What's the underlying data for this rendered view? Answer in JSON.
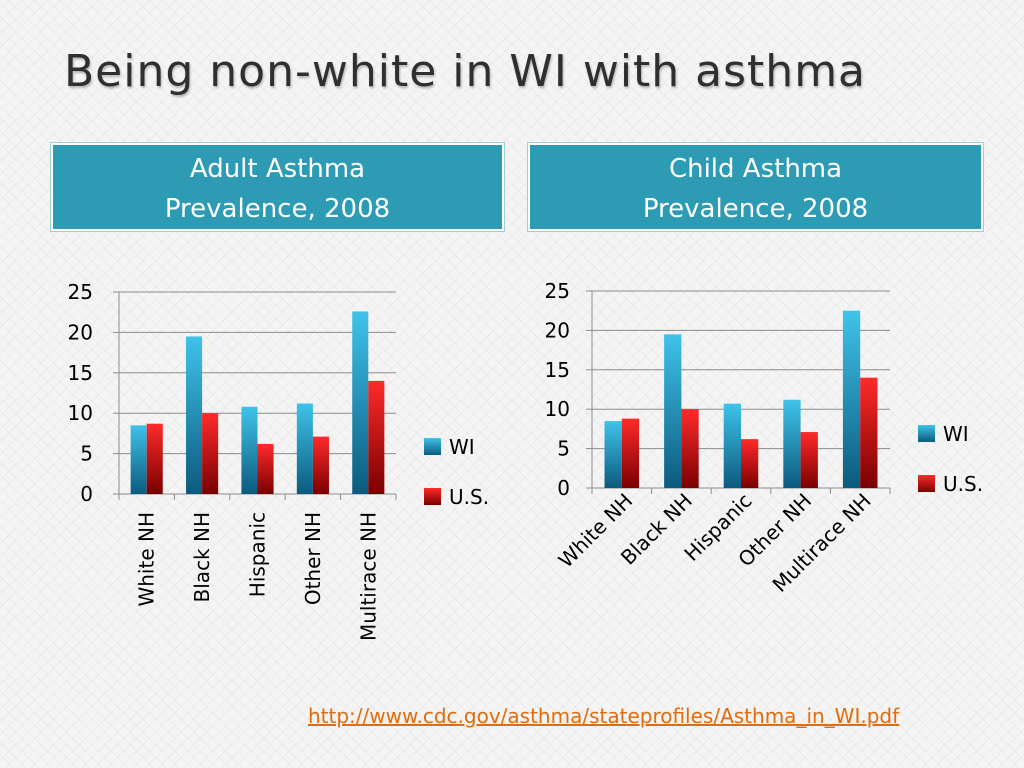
{
  "slide": {
    "title": "Being non-white in WI with asthma",
    "source_link": "http://www.cdc.gov/asthma/stateprofiles/Asthma_in_WI.pdf"
  },
  "headers": {
    "adult": {
      "line1": "Adult Asthma",
      "line2": "Prevalence, 2008"
    },
    "child": {
      "line1": "Child Asthma",
      "line2": "Prevalence, 2008"
    }
  },
  "colors": {
    "wi": "#1a95c1",
    "us": "#e02020",
    "header_bg": "#2e9bb5",
    "link": "#e36c0a"
  },
  "chart_data": [
    {
      "type": "bar",
      "categories": [
        "White NH",
        "Black NH",
        "Hispanic",
        "Other NH",
        "Multirace NH"
      ],
      "series": [
        {
          "name": "WI",
          "values": [
            8.5,
            19.5,
            10.8,
            11.2,
            22.6
          ]
        },
        {
          "name": "U.S.",
          "values": [
            8.7,
            10.0,
            6.2,
            7.1,
            14.0
          ]
        }
      ],
      "yticks": [
        0,
        5,
        10,
        15,
        20,
        25
      ],
      "ylim": [
        0,
        25
      ],
      "grid": true,
      "legend": "right",
      "label_rotation": "vertical"
    },
    {
      "type": "bar",
      "categories": [
        "White NH",
        "Black NH",
        "Hispanic",
        "Other NH",
        "Multirace NH"
      ],
      "series": [
        {
          "name": "WI",
          "values": [
            8.5,
            19.5,
            10.7,
            11.2,
            22.5
          ]
        },
        {
          "name": "U.S.",
          "values": [
            8.8,
            10.0,
            6.2,
            7.1,
            14.0
          ]
        }
      ],
      "yticks": [
        0,
        5,
        10,
        15,
        20,
        25
      ],
      "ylim": [
        0,
        25
      ],
      "grid": true,
      "legend": "right",
      "label_rotation": "diagonal"
    }
  ]
}
